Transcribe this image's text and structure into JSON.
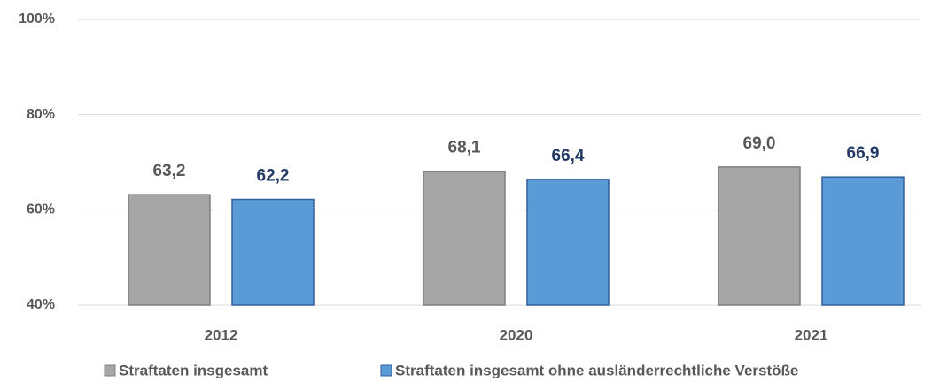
{
  "chart_data": {
    "type": "bar",
    "categories": [
      "2012",
      "2020",
      "2021"
    ],
    "series": [
      {
        "name": "Straftaten insgesamt",
        "color": "#a6a6a6",
        "values": [
          63.2,
          68.1,
          69.0
        ],
        "value_labels": [
          "63,2",
          "68,1",
          "69,0"
        ]
      },
      {
        "name": "Straftaten insgesamt ohne ausländerrechtliche Verstöße",
        "color": "#5b9bd5",
        "values": [
          62.2,
          66.4,
          66.9
        ],
        "value_labels": [
          "62,2",
          "66,4",
          "66,9"
        ]
      }
    ],
    "ylim": [
      40,
      100
    ],
    "yticks": [
      {
        "value": 40,
        "label": "40%"
      },
      {
        "value": 60,
        "label": "60%"
      },
      {
        "value": 80,
        "label": "80%"
      },
      {
        "value": 100,
        "label": "100%"
      }
    ],
    "grid": true,
    "legend": "bottom"
  }
}
